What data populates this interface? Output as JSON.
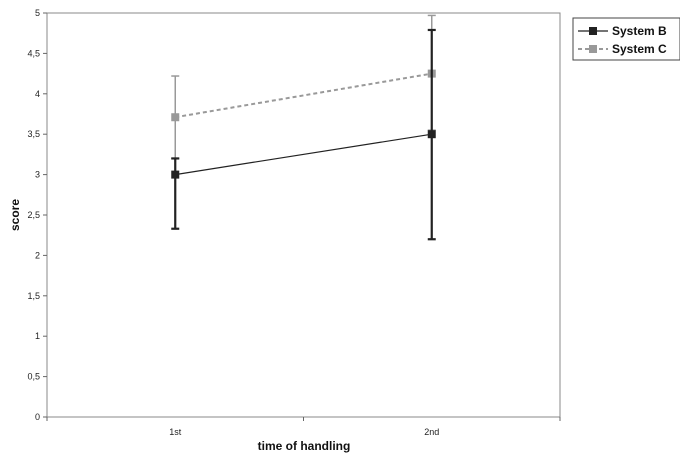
{
  "chart_data": {
    "type": "line",
    "categories": [
      "1st",
      "2nd"
    ],
    "xlabel": "time of handling",
    "ylabel": "score",
    "ylim": [
      0,
      5
    ],
    "yticks": [
      0,
      0.5,
      1,
      1.5,
      2,
      2.5,
      3,
      3.5,
      4,
      4.5,
      5
    ],
    "ytick_labels": [
      "0",
      "0,5",
      "1",
      "1,5",
      "2",
      "2,5",
      "3",
      "3,5",
      "4",
      "4,5",
      "5"
    ],
    "grid": false,
    "legend_position": "top-right",
    "series": [
      {
        "name": "System B",
        "values": [
          3.0,
          3.5
        ],
        "error_low": [
          2.33,
          2.2
        ],
        "error_high": [
          3.2,
          4.79
        ],
        "color": "#222222",
        "line_style": "solid",
        "marker": "square"
      },
      {
        "name": "System C",
        "values": [
          3.71,
          4.25
        ],
        "error_low": [
          3.2,
          3.55
        ],
        "error_high": [
          4.22,
          4.97
        ],
        "color": "#999999",
        "line_style": "dashed",
        "marker": "square"
      }
    ]
  }
}
